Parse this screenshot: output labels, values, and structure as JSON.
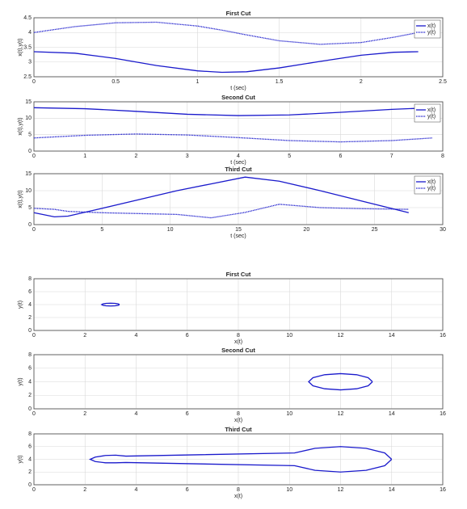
{
  "chart_data": [
    {
      "type": "line",
      "title": "First Cut",
      "xlabel": "t (sec)",
      "ylabel": "x(t),y(t)",
      "x": [
        0,
        0.25,
        0.5,
        0.75,
        1,
        1.15,
        1.3,
        1.5,
        1.75,
        2,
        2.2,
        2.35
      ],
      "series": [
        {
          "name": "x(t)",
          "color": "#1a1acc",
          "linestyle": "solid",
          "values": [
            3.35,
            3.3,
            3.12,
            2.88,
            2.7,
            2.65,
            2.67,
            2.8,
            3.02,
            3.23,
            3.33,
            3.35
          ]
        },
        {
          "name": "y(t)",
          "color": "#1a1acc",
          "linestyle": "dotted",
          "values": [
            4.0,
            4.2,
            4.33,
            4.35,
            4.22,
            4.08,
            3.92,
            3.72,
            3.6,
            3.66,
            3.84,
            4.0
          ]
        }
      ],
      "xlim": [
        0,
        2.5
      ],
      "xticks": [
        0,
        0.5,
        1,
        1.5,
        2,
        2.5
      ],
      "ylim": [
        2.5,
        4.5
      ],
      "yticks": [
        2.5,
        3,
        3.5,
        4,
        4.5
      ],
      "grid": true,
      "legend": "upper right"
    },
    {
      "type": "line",
      "title": "Second Cut",
      "xlabel": "t (sec)",
      "ylabel": "x(t),y(t)",
      "x": [
        0,
        1,
        2,
        3,
        4,
        5,
        6,
        7,
        7.8
      ],
      "series": [
        {
          "name": "x(t)",
          "color": "#1a1acc",
          "linestyle": "solid",
          "values": [
            13.2,
            12.9,
            12.1,
            11.2,
            10.8,
            11.0,
            11.8,
            12.7,
            13.2
          ]
        },
        {
          "name": "y(t)",
          "color": "#1a1acc",
          "linestyle": "dotted",
          "values": [
            4.0,
            4.8,
            5.2,
            4.9,
            4.1,
            3.2,
            2.8,
            3.2,
            4.0
          ]
        }
      ],
      "xlim": [
        0,
        8
      ],
      "xticks": [
        0,
        1,
        2,
        3,
        4,
        5,
        6,
        7,
        8
      ],
      "ylim": [
        0,
        15
      ],
      "yticks": [
        0,
        5,
        10,
        15
      ],
      "grid": true,
      "legend": "upper right"
    },
    {
      "type": "line",
      "title": "Third Cut",
      "xlabel": "t (sec)",
      "ylabel": "x(t),y(t)",
      "x": [
        0,
        1.5,
        2.5,
        5,
        10.5,
        13,
        15.5,
        18,
        21,
        24,
        27.5
      ],
      "series": [
        {
          "name": "x(t)",
          "color": "#1a1acc",
          "linestyle": "solid",
          "values": [
            3.5,
            2.3,
            2.5,
            4.8,
            10.0,
            12.0,
            14.0,
            12.8,
            10.0,
            7.0,
            3.5
          ]
        },
        {
          "name": "y(t)",
          "color": "#1a1acc",
          "linestyle": "dotted",
          "values": [
            4.8,
            4.5,
            3.9,
            3.5,
            3.0,
            2.0,
            3.6,
            6.0,
            5.0,
            4.7,
            4.5
          ]
        }
      ],
      "xlim": [
        0,
        30
      ],
      "xticks": [
        0,
        5,
        10,
        15,
        20,
        25,
        30
      ],
      "ylim": [
        0,
        15
      ],
      "yticks": [
        0,
        5,
        10,
        15
      ],
      "grid": true,
      "legend": "upper right"
    },
    {
      "type": "line",
      "title": "First Cut",
      "xlabel": "x(t)",
      "ylabel": "y(t)",
      "x": [
        3.35,
        3.3,
        3.18,
        3,
        2.82,
        2.7,
        2.65,
        2.7,
        2.82,
        3,
        3.18,
        3.3,
        3.35
      ],
      "series": [
        {
          "color": "#1a1acc",
          "linestyle": "solid",
          "values": [
            4,
            4.11,
            4.19,
            4.22,
            4.19,
            4.11,
            4,
            3.89,
            3.81,
            3.78,
            3.81,
            3.89,
            4
          ]
        }
      ],
      "xlim": [
        0,
        16
      ],
      "xticks": [
        0,
        2,
        4,
        6,
        8,
        10,
        12,
        14,
        16
      ],
      "ylim": [
        0,
        8
      ],
      "yticks": [
        0,
        2,
        4,
        6,
        8
      ],
      "grid": true
    },
    {
      "type": "line",
      "title": "Second Cut",
      "xlabel": "x(t)",
      "ylabel": "y(t)",
      "x": [
        13.25,
        13.08,
        12.63,
        12,
        11.38,
        10.92,
        10.75,
        10.92,
        11.38,
        12,
        12.63,
        13.08,
        13.25
      ],
      "series": [
        {
          "color": "#1a1acc",
          "linestyle": "solid",
          "values": [
            4,
            4.6,
            5.04,
            5.2,
            5.04,
            4.6,
            4,
            3.4,
            2.96,
            2.8,
            2.96,
            3.4,
            4
          ]
        }
      ],
      "xlim": [
        0,
        16
      ],
      "xticks": [
        0,
        2,
        4,
        6,
        8,
        10,
        12,
        14,
        16
      ],
      "ylim": [
        0,
        8
      ],
      "yticks": [
        0,
        2,
        4,
        6,
        8
      ],
      "grid": true
    },
    {
      "type": "line",
      "title": "Third Cut",
      "xlabel": "x(t)",
      "ylabel": "y(t)",
      "x": [
        14,
        13.73,
        13,
        12,
        11,
        10.2,
        3.6,
        3.2,
        2.8,
        2.4,
        2.2,
        2.4,
        2.8,
        3.2,
        3.6,
        10.2,
        11,
        12,
        13,
        13.73,
        14
      ],
      "series": [
        {
          "color": "#1a1acc",
          "linestyle": "solid",
          "values": [
            4,
            5,
            5.73,
            6,
            5.73,
            5,
            4.5,
            4.65,
            4.6,
            4.35,
            4,
            3.65,
            3.45,
            3.45,
            3.5,
            3,
            2.27,
            2,
            2.27,
            3,
            4
          ]
        }
      ],
      "xlim": [
        0,
        16
      ],
      "xticks": [
        0,
        2,
        4,
        6,
        8,
        10,
        12,
        14,
        16
      ],
      "ylim": [
        0,
        8
      ],
      "yticks": [
        0,
        2,
        4,
        6,
        8
      ],
      "grid": true
    }
  ]
}
